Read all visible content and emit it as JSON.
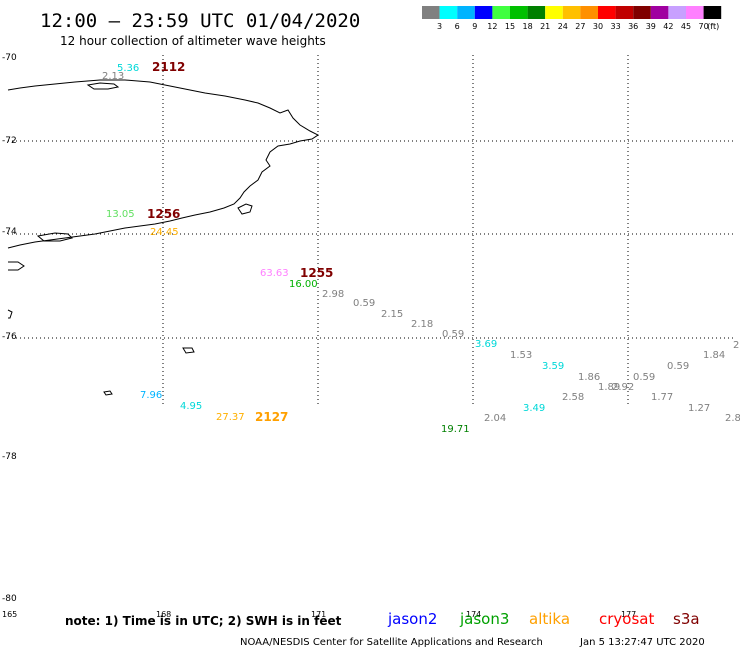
{
  "header": {
    "title": "12:00 — 23:59 UTC 01/04/2020",
    "subtitle": "12 hour collection of altimeter wave heights"
  },
  "scale": {
    "colors": [
      "#808080",
      "#00ffff",
      "#00b4ff",
      "#0000ff",
      "#40ff40",
      "#00c000",
      "#008000",
      "#ffff00",
      "#ffc000",
      "#ff9000",
      "#ff0000",
      "#c00000",
      "#800000",
      "#a000a0",
      "#c8a0ff",
      "#ff80ff",
      "#000000"
    ],
    "labels": [
      "3",
      "6",
      "9",
      "12",
      "15",
      "18",
      "21",
      "24",
      "27",
      "30",
      "33",
      "36",
      "39",
      "42",
      "45",
      "70",
      "(ft)"
    ]
  },
  "grid": {
    "lat_labels": [
      "-70",
      "-72",
      "-74",
      "-76",
      "-78",
      "-80"
    ],
    "lon_labels": [
      "165",
      "168",
      "171",
      "174",
      "177"
    ]
  },
  "observations": [
    {
      "text": "5.36",
      "color": "#00d8d8"
    },
    {
      "text": "2.13",
      "color": "#808080"
    },
    {
      "text": "13.05",
      "color": "#60e060"
    },
    {
      "text": "24.45",
      "color": "#ffb000"
    },
    {
      "text": "63.63",
      "color": "#ff80ff"
    },
    {
      "text": "16.00",
      "color": "#00b000"
    },
    {
      "text": "2.98",
      "color": "#808080"
    },
    {
      "text": "0.59",
      "color": "#808080"
    },
    {
      "text": "2.15",
      "color": "#808080"
    },
    {
      "text": "2.18",
      "color": "#808080"
    },
    {
      "text": "0.59",
      "color": "#808080"
    },
    {
      "text": "3.69",
      "color": "#00d8d8"
    },
    {
      "text": "1.53",
      "color": "#808080"
    },
    {
      "text": "3.59",
      "color": "#00d8d8"
    },
    {
      "text": "1.86",
      "color": "#808080"
    },
    {
      "text": "1.89",
      "color": "#808080"
    },
    {
      "text": "2.92",
      "color": "#808080"
    },
    {
      "text": "0.59",
      "color": "#808080"
    },
    {
      "text": "0.59",
      "color": "#808080"
    },
    {
      "text": "1.84",
      "color": "#808080"
    },
    {
      "text": "2",
      "color": "#808080"
    },
    {
      "text": "2.58",
      "color": "#808080"
    },
    {
      "text": "1.77",
      "color": "#808080"
    },
    {
      "text": "1.27",
      "color": "#808080"
    },
    {
      "text": "2.8",
      "color": "#808080"
    },
    {
      "text": "3.49",
      "color": "#00d8d8"
    },
    {
      "text": "2.04",
      "color": "#808080"
    },
    {
      "text": "19.71",
      "color": "#008000"
    },
    {
      "text": "7.96",
      "color": "#00b4ff"
    },
    {
      "text": "4.95",
      "color": "#00d8d8"
    },
    {
      "text": "27.37",
      "color": "#ffb000"
    }
  ],
  "times": [
    {
      "text": "2112",
      "color": "#800000"
    },
    {
      "text": "1256",
      "color": "#800000"
    },
    {
      "text": "1255",
      "color": "#800000"
    },
    {
      "text": "2127",
      "color": "#ffa000"
    }
  ],
  "footer": {
    "note": "note: 1) Time is in UTC; 2) SWH is in feet",
    "missions": [
      {
        "name": "jason2",
        "color": "#0000ff"
      },
      {
        "name": "jason3",
        "color": "#00a000"
      },
      {
        "name": "altika",
        "color": "#ffa000"
      },
      {
        "name": "cryosat",
        "color": "#ff0000"
      },
      {
        "name": "s3a",
        "color": "#800000"
      }
    ],
    "credit": "NOAA/NESDIS Center for Satellite Applications and Research",
    "timestamp": "Jan  5 13:27:47 UTC 2020"
  }
}
